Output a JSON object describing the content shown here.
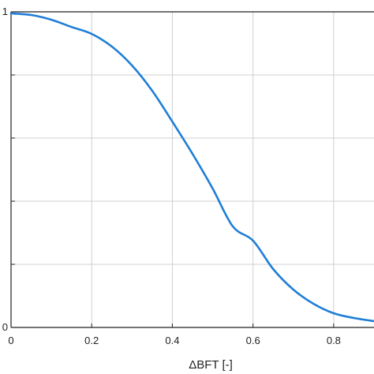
{
  "chart_data": {
    "type": "line",
    "xlabel": "ΔBFT [-]",
    "ylabel": "",
    "xlim": [
      0,
      0.9
    ],
    "ylim": [
      0,
      1
    ],
    "x_ticks": [
      "0",
      "0.2",
      "0.4",
      "0.6",
      "0.8"
    ],
    "x_tick_values": [
      0,
      0.2,
      0.4,
      0.6,
      0.8
    ],
    "y_ticks": [
      "0",
      "1"
    ],
    "y_tick_values": [
      0,
      0.2,
      0.4,
      0.6,
      0.8,
      1.0
    ],
    "grid": true,
    "series": [
      {
        "color": "#1f7ed6",
        "x": [
          0,
          0.05,
          0.1,
          0.15,
          0.2,
          0.25,
          0.3,
          0.35,
          0.4,
          0.45,
          0.5,
          0.55,
          0.6,
          0.65,
          0.7,
          0.75,
          0.8,
          0.85,
          0.9
        ],
        "y": [
          0.995,
          0.99,
          0.975,
          0.952,
          0.93,
          0.89,
          0.83,
          0.75,
          0.652,
          0.55,
          0.44,
          0.32,
          0.275,
          0.185,
          0.12,
          0.075,
          0.045,
          0.03,
          0.02
        ]
      }
    ]
  }
}
